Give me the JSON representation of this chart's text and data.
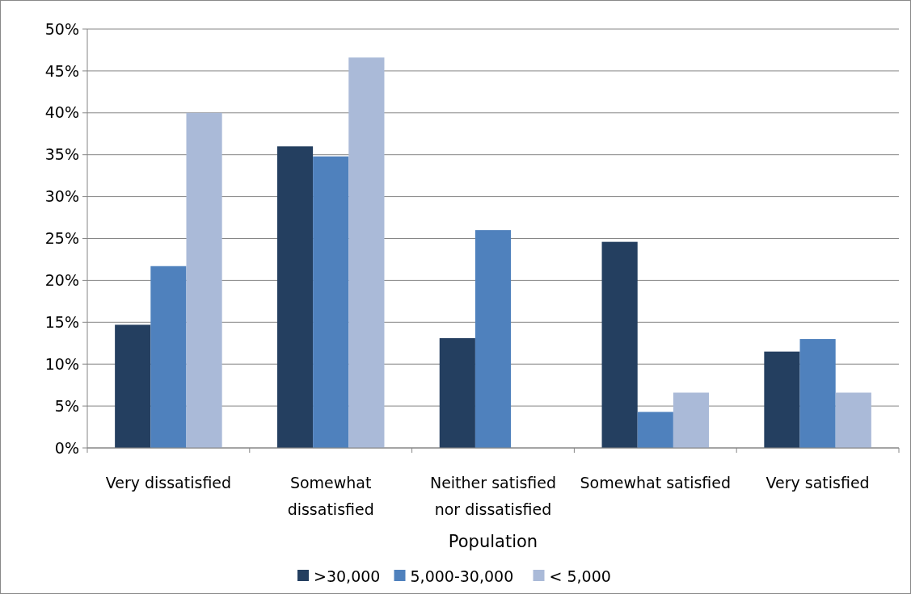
{
  "chart_data": {
    "type": "bar",
    "categories": [
      "Very dissatisfied",
      "Somewhat dissatisfied",
      "Neither satisfied nor dissatisfied",
      "Somewhat satisfied",
      "Very satisfied"
    ],
    "series": [
      {
        "name": ">30,000",
        "color": "#243f60",
        "values": [
          14.7,
          36.0,
          13.1,
          24.6,
          11.5
        ]
      },
      {
        "name": "5,000-30,000",
        "color": "#4f81bd",
        "values": [
          21.7,
          34.8,
          26.0,
          4.3,
          13.0
        ]
      },
      {
        "name": "< 5,000",
        "color": "#aabad8",
        "values": [
          40.0,
          46.6,
          0,
          6.6,
          6.6
        ]
      }
    ],
    "legend_title": "Population",
    "legend": "bottom",
    "grid": "y",
    "ylim": [
      0,
      50
    ],
    "yticks": [
      {
        "value": 0,
        "label": "0%"
      },
      {
        "value": 5,
        "label": "5%"
      },
      {
        "value": 10,
        "label": "10%"
      },
      {
        "value": 15,
        "label": "15%"
      },
      {
        "value": 20,
        "label": "20%"
      },
      {
        "value": 25,
        "label": "25%"
      },
      {
        "value": 30,
        "label": "30%"
      },
      {
        "value": 35,
        "label": "35%"
      },
      {
        "value": 40,
        "label": "40%"
      },
      {
        "value": 45,
        "label": "45%"
      },
      {
        "value": 50,
        "label": "50%"
      }
    ]
  }
}
